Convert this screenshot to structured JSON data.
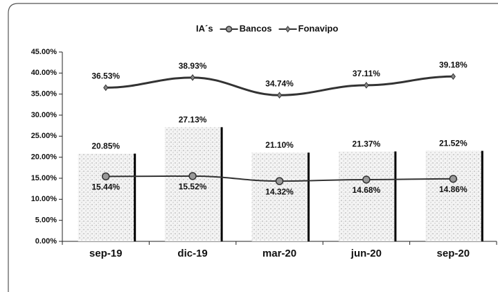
{
  "chart_data": {
    "type": "bar",
    "categories": [
      "sep-19",
      "dic-19",
      "mar-20",
      "jun-20",
      "sep-20"
    ],
    "series": [
      {
        "name": "IA´s",
        "type": "bar",
        "color": "#bdbdbd",
        "values": [
          20.85,
          27.13,
          21.1,
          21.37,
          21.52
        ],
        "value_labels": [
          "20.85%",
          "27.13%",
          "21.10%",
          "21.37%",
          "21.52%"
        ]
      },
      {
        "name": "Bancos",
        "type": "line",
        "marker": "circle",
        "color": "#333333",
        "values": [
          15.44,
          15.52,
          14.32,
          14.68,
          14.86
        ],
        "value_labels": [
          "15.44%",
          "15.52%",
          "14.32%",
          "14.68%",
          "14.86%"
        ]
      },
      {
        "name": "Fonavipo",
        "type": "line",
        "marker": "diamond",
        "color": "#333333",
        "values": [
          36.53,
          38.93,
          34.74,
          37.11,
          39.18
        ],
        "value_labels": [
          "36.53%",
          "38.93%",
          "34.74%",
          "37.11%",
          "39.18%"
        ]
      }
    ],
    "ylim": [
      0,
      45
    ],
    "yticks": [
      {
        "value": 0,
        "label": "0.00%"
      },
      {
        "value": 5,
        "label": "5.00%"
      },
      {
        "value": 10,
        "label": "10.00%"
      },
      {
        "value": 15,
        "label": "15.00%"
      },
      {
        "value": 20,
        "label": "20.00%"
      },
      {
        "value": 25,
        "label": "25.00%"
      },
      {
        "value": 30,
        "label": "30.00%"
      },
      {
        "value": 35,
        "label": "35.00%"
      },
      {
        "value": 40,
        "label": "40.00%"
      },
      {
        "value": 45,
        "label": "45.00%"
      }
    ],
    "legend": "top"
  }
}
